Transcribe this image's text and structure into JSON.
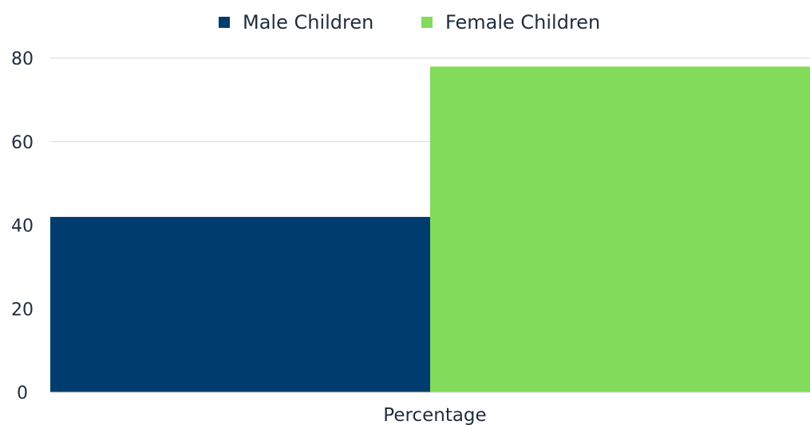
{
  "chart_data": {
    "type": "bar",
    "categories": [
      "Percentage"
    ],
    "series": [
      {
        "name": "Male Children",
        "values": [
          42
        ],
        "color": "#003D6E"
      },
      {
        "name": "Female Children",
        "values": [
          78
        ],
        "color": "#82DB5A"
      }
    ],
    "yticks": [
      "0",
      "20",
      "40",
      "60",
      "80"
    ],
    "ylim": [
      0,
      80
    ],
    "grid": true,
    "legend_position": "top-center"
  }
}
